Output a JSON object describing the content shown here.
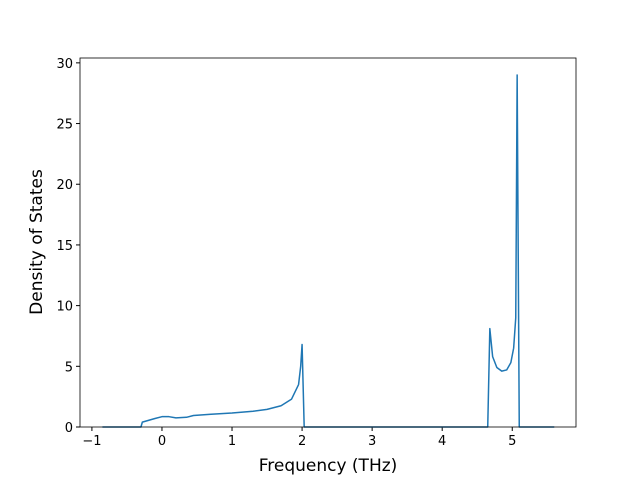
{
  "chart_data": {
    "type": "line",
    "x_label": "Frequency (THz)",
    "y_label": "Density of States",
    "series": [
      {
        "color": "#1f77b4",
        "x": [
          -0.85,
          -0.3,
          -0.28,
          -0.1,
          0,
          0.1,
          0.2,
          0.35,
          0.45,
          0.7,
          1.0,
          1.3,
          1.5,
          1.7,
          1.85,
          1.95,
          1.98,
          2.0,
          2.03,
          4.65,
          4.68,
          4.72,
          4.78,
          4.85,
          4.92,
          4.98,
          5.02,
          5.05,
          5.07,
          5.1,
          5.6
        ],
        "values": [
          0,
          0,
          0.4,
          0.7,
          0.85,
          0.85,
          0.75,
          0.8,
          0.95,
          1.05,
          1.15,
          1.3,
          1.45,
          1.75,
          2.3,
          3.5,
          5,
          6.8,
          0,
          0,
          8.1,
          5.8,
          4.9,
          4.6,
          4.7,
          5.3,
          6.5,
          9,
          29,
          0,
          0
        ]
      }
    ],
    "xlim": [
      -1.17,
      5.91
    ],
    "ylim": [
      0,
      30.4
    ],
    "xticks": [
      {
        "value": -1,
        "label": "−1"
      },
      0,
      1,
      2,
      3,
      4,
      5
    ],
    "yticks": [
      0,
      5,
      10,
      15,
      20,
      25,
      30
    ]
  }
}
